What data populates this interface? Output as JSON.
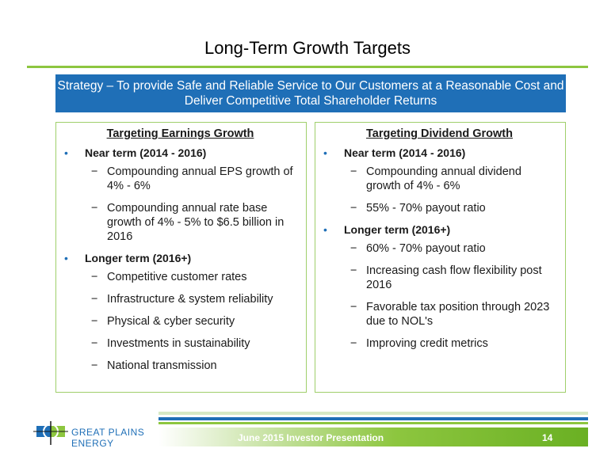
{
  "title": "Long-Term Growth Targets",
  "strategy": "Strategy – To provide Safe and Reliable Service to Our Customers at a Reasonable Cost and Deliver Competitive Total Shareholder Returns",
  "left_box": {
    "heading": "Targeting Earnings Growth",
    "near_term": "Near term (2014 - 2016)",
    "near_items": [
      "Compounding annual EPS growth of 4% - 6%",
      "Compounding annual rate base growth of 4% - 5% to $6.5 billion in 2016"
    ],
    "longer_term": "Longer term (2016+)",
    "longer_items": [
      "Competitive customer rates",
      "Infrastructure & system reliability",
      "Physical & cyber security",
      "Investments in sustainability",
      "National transmission"
    ]
  },
  "right_box": {
    "heading": "Targeting Dividend Growth",
    "near_term": "Near term (2014 - 2016)",
    "near_items": [
      "Compounding annual dividend growth of 4% - 6%",
      "55% - 70% payout ratio"
    ],
    "longer_term": "Longer term (2016+)",
    "longer_items": [
      "60% - 70% payout ratio",
      "Increasing cash flow flexibility post 2016",
      "Favorable tax position through 2023 due to NOL's",
      "Improving credit metrics"
    ]
  },
  "footer": {
    "logo_text": "GREAT PLAINS ENERGY",
    "presentation": "June 2015 Investor Presentation",
    "page_number": "14"
  },
  "colors": {
    "accent_green": "#8dc63f",
    "brand_blue": "#1f6fb7"
  }
}
